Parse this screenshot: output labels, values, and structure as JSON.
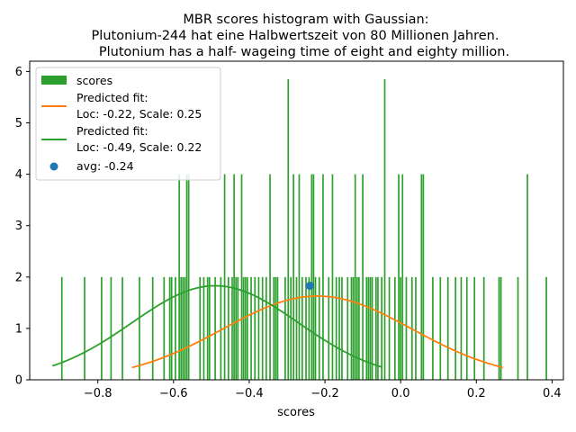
{
  "chart_data": {
    "type": "bar",
    "title_lines": [
      "MBR scores histogram with Gaussian:",
      "Plutonium-244 hat eine Halbwertszeit von 80 Millionen Jahren.",
      "Plutonium has a half- wageing time of eight and eighty million."
    ],
    "xlabel": "scores",
    "ylabel": "",
    "xlim": [
      -0.98,
      0.43
    ],
    "ylim": [
      0,
      6.2
    ],
    "xticks": [
      -0.8,
      -0.6,
      -0.4,
      -0.2,
      0.0,
      0.2,
      0.4
    ],
    "xtick_labels": [
      "−0.8",
      "−0.6",
      "−0.4",
      "−0.2",
      "0.0",
      "0.2",
      "0.4"
    ],
    "yticks": [
      0,
      1,
      2,
      3,
      4,
      5,
      6
    ],
    "ytick_labels": [
      "0",
      "1",
      "2",
      "3",
      "4",
      "5",
      "6"
    ],
    "legend_position": "upper-left",
    "histogram": {
      "name": "scores",
      "color": "#2ca02c",
      "bin_width": 0.004,
      "bars": [
        {
          "x": -0.895,
          "h": 2
        },
        {
          "x": -0.835,
          "h": 2
        },
        {
          "x": -0.79,
          "h": 2
        },
        {
          "x": -0.765,
          "h": 2
        },
        {
          "x": -0.735,
          "h": 2
        },
        {
          "x": -0.69,
          "h": 2
        },
        {
          "x": -0.655,
          "h": 2
        },
        {
          "x": -0.625,
          "h": 2
        },
        {
          "x": -0.61,
          "h": 2
        },
        {
          "x": -0.605,
          "h": 2
        },
        {
          "x": -0.595,
          "h": 2
        },
        {
          "x": -0.585,
          "h": 4
        },
        {
          "x": -0.58,
          "h": 2
        },
        {
          "x": -0.575,
          "h": 2
        },
        {
          "x": -0.57,
          "h": 2
        },
        {
          "x": -0.565,
          "h": 4
        },
        {
          "x": -0.56,
          "h": 4
        },
        {
          "x": -0.53,
          "h": 2
        },
        {
          "x": -0.52,
          "h": 2
        },
        {
          "x": -0.51,
          "h": 2
        },
        {
          "x": -0.505,
          "h": 2
        },
        {
          "x": -0.49,
          "h": 2
        },
        {
          "x": -0.475,
          "h": 2
        },
        {
          "x": -0.465,
          "h": 4
        },
        {
          "x": -0.455,
          "h": 2
        },
        {
          "x": -0.445,
          "h": 2
        },
        {
          "x": -0.44,
          "h": 4
        },
        {
          "x": -0.435,
          "h": 2
        },
        {
          "x": -0.43,
          "h": 2
        },
        {
          "x": -0.42,
          "h": 4
        },
        {
          "x": -0.415,
          "h": 2
        },
        {
          "x": -0.41,
          "h": 2
        },
        {
          "x": -0.405,
          "h": 2
        },
        {
          "x": -0.395,
          "h": 2
        },
        {
          "x": -0.385,
          "h": 2
        },
        {
          "x": -0.375,
          "h": 2
        },
        {
          "x": -0.365,
          "h": 2
        },
        {
          "x": -0.355,
          "h": 2
        },
        {
          "x": -0.345,
          "h": 4
        },
        {
          "x": -0.335,
          "h": 2
        },
        {
          "x": -0.33,
          "h": 2
        },
        {
          "x": -0.325,
          "h": 2
        },
        {
          "x": -0.305,
          "h": 2
        },
        {
          "x": -0.297,
          "h": 5.85
        },
        {
          "x": -0.29,
          "h": 2
        },
        {
          "x": -0.283,
          "h": 4
        },
        {
          "x": -0.275,
          "h": 2
        },
        {
          "x": -0.268,
          "h": 4
        },
        {
          "x": -0.26,
          "h": 2
        },
        {
          "x": -0.25,
          "h": 2
        },
        {
          "x": -0.242,
          "h": 2
        },
        {
          "x": -0.235,
          "h": 4
        },
        {
          "x": -0.23,
          "h": 4
        },
        {
          "x": -0.225,
          "h": 2
        },
        {
          "x": -0.215,
          "h": 2
        },
        {
          "x": -0.205,
          "h": 4
        },
        {
          "x": -0.19,
          "h": 2
        },
        {
          "x": -0.18,
          "h": 4
        },
        {
          "x": -0.17,
          "h": 2
        },
        {
          "x": -0.162,
          "h": 2
        },
        {
          "x": -0.155,
          "h": 2
        },
        {
          "x": -0.14,
          "h": 2
        },
        {
          "x": -0.13,
          "h": 2
        },
        {
          "x": -0.125,
          "h": 2
        },
        {
          "x": -0.12,
          "h": 4
        },
        {
          "x": -0.115,
          "h": 2
        },
        {
          "x": -0.11,
          "h": 2
        },
        {
          "x": -0.1,
          "h": 4
        },
        {
          "x": -0.09,
          "h": 2
        },
        {
          "x": -0.085,
          "h": 2
        },
        {
          "x": -0.08,
          "h": 2
        },
        {
          "x": -0.075,
          "h": 2
        },
        {
          "x": -0.065,
          "h": 2
        },
        {
          "x": -0.06,
          "h": 2
        },
        {
          "x": -0.05,
          "h": 2
        },
        {
          "x": -0.042,
          "h": 5.85
        },
        {
          "x": -0.03,
          "h": 2
        },
        {
          "x": -0.015,
          "h": 2
        },
        {
          "x": -0.005,
          "h": 4
        },
        {
          "x": 0.0,
          "h": 2
        },
        {
          "x": 0.005,
          "h": 4
        },
        {
          "x": 0.015,
          "h": 2
        },
        {
          "x": 0.03,
          "h": 2
        },
        {
          "x": 0.04,
          "h": 2
        },
        {
          "x": 0.055,
          "h": 4
        },
        {
          "x": 0.06,
          "h": 4
        },
        {
          "x": 0.085,
          "h": 2
        },
        {
          "x": 0.105,
          "h": 2
        },
        {
          "x": 0.125,
          "h": 2
        },
        {
          "x": 0.145,
          "h": 2
        },
        {
          "x": 0.16,
          "h": 2
        },
        {
          "x": 0.175,
          "h": 2
        },
        {
          "x": 0.195,
          "h": 2
        },
        {
          "x": 0.22,
          "h": 2
        },
        {
          "x": 0.26,
          "h": 2
        },
        {
          "x": 0.265,
          "h": 2
        },
        {
          "x": 0.31,
          "h": 2
        },
        {
          "x": 0.335,
          "h": 4
        },
        {
          "x": 0.385,
          "h": 2
        }
      ]
    },
    "series": [
      {
        "name": "Predicted fit:",
        "detail": "Loc: -0.22, Scale: 0.25",
        "color": "#ff7f0e",
        "loc": -0.22,
        "scale": 0.25,
        "x_range": [
          -0.71,
          0.27
        ],
        "peak": 1.63
      },
      {
        "name": "Predicted fit:",
        "detail": "Loc: -0.49, Scale: 0.22",
        "color": "#2ca02c",
        "loc": -0.49,
        "scale": 0.22,
        "x_range": [
          -0.92,
          -0.05
        ],
        "peak": 1.83
      }
    ],
    "points": [
      {
        "name": "avg: -0.24",
        "x": -0.24,
        "y": 1.83,
        "color": "#1f77b4"
      }
    ]
  }
}
